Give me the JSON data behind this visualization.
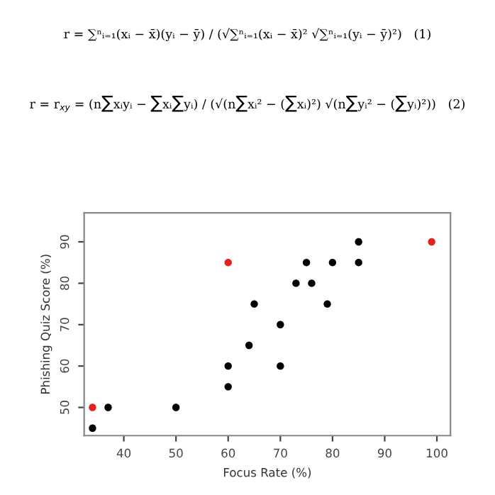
{
  "chart_data": {
    "type": "scatter",
    "xlabel": "Focus Rate (%)",
    "ylabel": "Phishing Quiz Score (%)",
    "annotations": [
      "r = ∑ⁿᵢ₌₁(xᵢ − x̄)(yᵢ − ȳ) / (√∑ⁿᵢ₌₁(xᵢ − x̄)² √∑ⁿᵢ₌₁(yᵢ − ȳ)²)   (1)",
      "r = r$_{xy}$ = (n∑xᵢyᵢ − ∑xᵢ∑yᵢ) / (√(n∑xᵢ² − (∑xᵢ)²) √(n∑yᵢ² − (∑yᵢ)²))   (2)"
    ],
    "series": [
      {
        "color": "#000000",
        "x": [
          34,
          37,
          50,
          60,
          60,
          64,
          65,
          70,
          70,
          73,
          75,
          76,
          79,
          80,
          85,
          85
        ],
        "values": [
          45,
          50,
          50,
          55,
          60,
          65,
          75,
          60,
          70,
          80,
          85,
          80,
          75,
          85,
          85,
          90
        ]
      },
      {
        "color": "#e3231c",
        "x": [
          34,
          60,
          99
        ],
        "values": [
          50,
          85,
          90
        ]
      }
    ],
    "xlim": [
      32.4,
      102.6
    ],
    "ylim": [
      43.2,
      97
    ],
    "xticks": [
      40,
      50,
      60,
      70,
      80,
      90,
      100
    ],
    "yticks": [
      50,
      60,
      70,
      80,
      90
    ],
    "marker": "circle",
    "grid": false,
    "legend": false
  }
}
